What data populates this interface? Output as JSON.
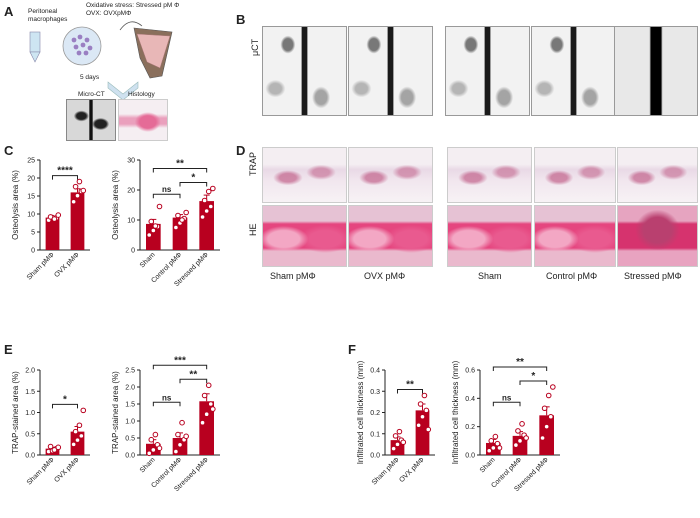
{
  "panels": {
    "A": "A",
    "B": "B",
    "C": "C",
    "D": "D",
    "E": "E",
    "F": "F"
  },
  "schematic": {
    "peritoneal": "Peritoneal macrophages",
    "stress_line": "Oxidative stress: Stressed pM Φ",
    "ovx_line": "OVX: OVXpMΦ",
    "days": "5 days",
    "micro_ct": "Micro-CT",
    "histology": "Histology"
  },
  "b_row_label": "μCT",
  "d_row_labels": {
    "trap": "TRAP",
    "he": "HE"
  },
  "d_col_labels": [
    "Sham pMΦ",
    "OVX pMΦ",
    "Sham",
    "Control pMΦ",
    "Stressed pMΦ"
  ],
  "colors": {
    "bar": "#b8001f",
    "marker": "#ffffff",
    "axis": "#222222"
  },
  "chart_data": [
    {
      "id": "C1",
      "type": "bar",
      "ylabel": "Osteolysis area (%)",
      "ylim": [
        0,
        25
      ],
      "yticks": [
        "0",
        "5",
        "10",
        "15",
        "20",
        "25"
      ],
      "categories": [
        "Sham pMΦ",
        "OVX pMΦ"
      ],
      "values": [
        9.0,
        16.0
      ],
      "errors": [
        0.4,
        1.0
      ],
      "points": [
        [
          8.3,
          9.0,
          8.9,
          9.2,
          8.6,
          9.7
        ],
        [
          13.4,
          15.1,
          16.3,
          17.6,
          19.0,
          16.5
        ]
      ],
      "sig": [
        {
          "a": 0,
          "b": 1,
          "label": "****"
        }
      ]
    },
    {
      "id": "C2",
      "type": "bar",
      "ylabel": "Osteolysis area (%)",
      "ylim": [
        0,
        30
      ],
      "yticks": [
        "0",
        "10",
        "20",
        "30"
      ],
      "categories": [
        "Sham",
        "Control pMΦ",
        "Stressed pMΦ"
      ],
      "values": [
        8.7,
        10.8,
        16.3
      ],
      "errors": [
        1.5,
        1.0,
        2.0
      ],
      "points": [
        [
          5.0,
          6.5,
          7.8,
          9.5,
          8.0,
          14.5
        ],
        [
          7.5,
          9.0,
          10.5,
          11.5,
          10.0,
          12.5
        ],
        [
          11.0,
          13.0,
          14.5,
          16.5,
          19.5,
          20.5
        ]
      ],
      "sig": [
        {
          "a": 0,
          "b": 1,
          "label": "ns"
        },
        {
          "a": 0,
          "b": 2,
          "label": "**"
        },
        {
          "a": 1,
          "b": 2,
          "label": "*"
        }
      ]
    },
    {
      "id": "E1",
      "type": "bar",
      "ylabel": "TRAP-stained area (%)",
      "ylim": [
        0,
        2.0
      ],
      "yticks": [
        "0.0",
        "0.5",
        "1.0",
        "1.5",
        "2.0"
      ],
      "categories": [
        "Sham pMΦ",
        "OVX pMΦ"
      ],
      "values": [
        0.15,
        0.55
      ],
      "errors": [
        0.03,
        0.12
      ],
      "points": [
        [
          0.08,
          0.1,
          0.15,
          0.2,
          0.12,
          0.18
        ],
        [
          0.25,
          0.35,
          0.45,
          0.55,
          0.7,
          1.05
        ]
      ],
      "sig": [
        {
          "a": 0,
          "b": 1,
          "label": "*"
        }
      ]
    },
    {
      "id": "E2",
      "type": "bar",
      "ylabel": "TRAP-stained area (%)",
      "ylim": [
        0,
        2.5
      ],
      "yticks": [
        "0.0",
        "0.5",
        "1.0",
        "1.5",
        "2.0",
        "2.5"
      ],
      "categories": [
        "Sham",
        "Control pMΦ",
        "Stressed pMΦ"
      ],
      "values": [
        0.33,
        0.5,
        1.58
      ],
      "errors": [
        0.12,
        0.15,
        0.22
      ],
      "points": [
        [
          0.05,
          0.15,
          0.3,
          0.45,
          0.6,
          0.2
        ],
        [
          0.1,
          0.3,
          0.45,
          0.6,
          0.95,
          0.55
        ],
        [
          0.95,
          1.2,
          1.5,
          1.75,
          2.05,
          1.35
        ]
      ],
      "sig": [
        {
          "a": 0,
          "b": 1,
          "label": "ns"
        },
        {
          "a": 0,
          "b": 2,
          "label": "***"
        },
        {
          "a": 1,
          "b": 2,
          "label": "**"
        }
      ]
    },
    {
      "id": "F1",
      "type": "bar",
      "ylabel": "Infiltrated cell thickness (mm)",
      "ylim": [
        0,
        0.4
      ],
      "yticks": [
        "0.0",
        "0.1",
        "0.2",
        "0.3",
        "0.4"
      ],
      "categories": [
        "Sham pMΦ",
        "OVX pMΦ"
      ],
      "values": [
        0.07,
        0.21
      ],
      "errors": [
        0.015,
        0.03
      ],
      "points": [
        [
          0.03,
          0.05,
          0.07,
          0.09,
          0.11,
          0.06
        ],
        [
          0.14,
          0.18,
          0.21,
          0.24,
          0.28,
          0.12
        ]
      ],
      "sig": [
        {
          "a": 0,
          "b": 1,
          "label": "**"
        }
      ]
    },
    {
      "id": "F2",
      "type": "bar",
      "ylabel": "Infiltrated cell thickness (mm)",
      "ylim": [
        0,
        0.6
      ],
      "yticks": [
        "0.0",
        "0.2",
        "0.4",
        "0.6"
      ],
      "categories": [
        "Sham",
        "Control pMΦ",
        "Stressed pMΦ"
      ],
      "values": [
        0.085,
        0.135,
        0.28
      ],
      "errors": [
        0.025,
        0.03,
        0.06
      ],
      "points": [
        [
          0.03,
          0.05,
          0.08,
          0.1,
          0.13,
          0.05
        ],
        [
          0.07,
          0.1,
          0.14,
          0.17,
          0.22,
          0.12
        ],
        [
          0.12,
          0.2,
          0.27,
          0.33,
          0.42,
          0.48
        ]
      ],
      "sig": [
        {
          "a": 0,
          "b": 1,
          "label": "ns"
        },
        {
          "a": 0,
          "b": 2,
          "label": "**"
        },
        {
          "a": 1,
          "b": 2,
          "label": "*"
        }
      ]
    }
  ]
}
